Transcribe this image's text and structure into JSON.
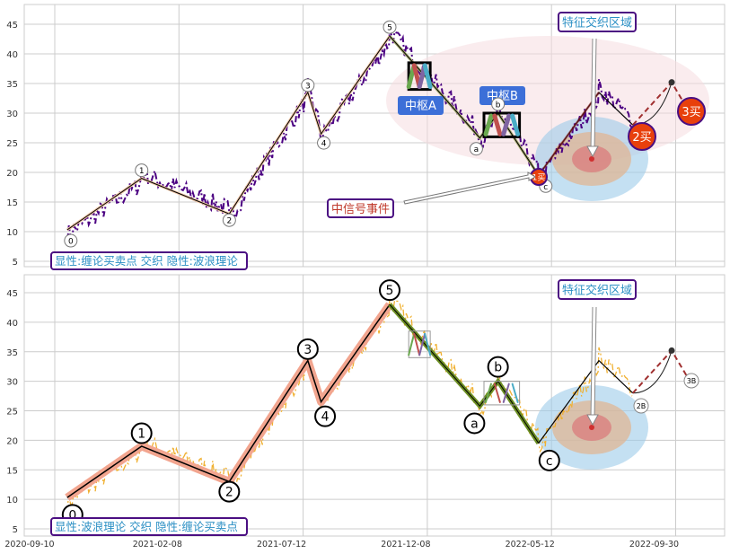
{
  "chart_data": [
    {
      "type": "line",
      "panel": "top",
      "title": "",
      "xlabel": "",
      "ylabel": "",
      "ylim": [
        4,
        48
      ],
      "y_ticks": [
        5,
        10,
        15,
        20,
        25,
        30,
        35,
        40,
        45
      ],
      "grid": true,
      "price_color": "#4b0082",
      "wave_points": [
        {
          "label": "0",
          "day": 15,
          "value": 10.3
        },
        {
          "label": "1",
          "day": 105,
          "value": 19
        },
        {
          "label": "2",
          "day": 211,
          "value": 13
        },
        {
          "label": "3",
          "day": 306,
          "value": 33.5
        },
        {
          "label": "4",
          "day": 322,
          "value": 26.5
        },
        {
          "label": "5",
          "day": 405,
          "value": 43
        },
        {
          "label": "a",
          "day": 514,
          "value": 25.8
        },
        {
          "label": "b",
          "day": 536,
          "value": 30
        },
        {
          "label": "c",
          "day": 585,
          "value": 19.5
        }
      ],
      "extension_points": [
        {
          "day": 658,
          "value": 33.5
        },
        {
          "day": 699,
          "value": 28
        },
        {
          "day": 746,
          "value": 35.2
        },
        {
          "day": 768,
          "value": 30
        }
      ],
      "signals": [
        {
          "label": "1买",
          "day": 585,
          "value": 19.5
        },
        {
          "label": "2买",
          "day": 710,
          "value": 24
        },
        {
          "label": "3买",
          "day": 768,
          "value": 30
        }
      ],
      "pivot_zones": [
        {
          "label": "中枢A",
          "day_start": 428,
          "day_end": 454,
          "low": 34,
          "high": 38.5
        },
        {
          "label": "中枢B",
          "day_start": 519,
          "day_end": 562,
          "low": 26,
          "high": 30
        }
      ],
      "annotations": {
        "feature_zone": "特征交织区域",
        "signal_event": "中信号事件",
        "legend": "显性:缠论买卖点 交织 隐性:波浪理论"
      }
    },
    {
      "type": "line",
      "panel": "bottom",
      "ylim": [
        4,
        48
      ],
      "y_ticks": [
        5,
        10,
        15,
        20,
        25,
        30,
        35,
        40,
        45
      ],
      "x_tick_labels": [
        "2020-09-10",
        "2021-02-08",
        "2021-07-12",
        "2021-12-08",
        "2022-05-12",
        "2022-09-30"
      ],
      "grid": true,
      "price_color": "#f0b030",
      "signals": [
        {
          "label": "2B",
          "day": 708,
          "value": 26
        },
        {
          "label": "3B",
          "day": 768,
          "value": 30
        }
      ],
      "annotations": {
        "feature_zone": "特征交织区域",
        "legend": "显性:波浪理论 交织 隐性:缠论买卖点"
      }
    }
  ]
}
